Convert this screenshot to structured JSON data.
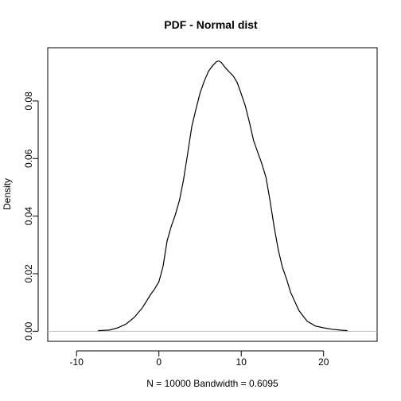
{
  "chart_data": {
    "type": "line",
    "title": "PDF - Normal dist",
    "xlabel": "N = 10000   Bandwidth = 0.6095",
    "ylabel": "Density",
    "xlim": [
      -13.5,
      26.5
    ],
    "ylim": [
      -0.0035,
      0.0985
    ],
    "x_ticks": [
      -10,
      0,
      10,
      20
    ],
    "x_tick_labels": [
      "-10",
      "0",
      "10",
      "20"
    ],
    "y_ticks": [
      0.0,
      0.02,
      0.04,
      0.06,
      0.08
    ],
    "y_tick_labels": [
      "0.00",
      "0.02",
      "0.04",
      "0.06",
      "0.08"
    ],
    "zero_line": true,
    "grid": false,
    "series": [
      {
        "x": [
          -7.4,
          -6,
          -5,
          -4,
          -3,
          -2,
          -1.5,
          -1,
          -0.5,
          0,
          0.5,
          1,
          1.5,
          2,
          2.5,
          3,
          3.5,
          4,
          4.5,
          5,
          5.5,
          6,
          6.5,
          7,
          7.3,
          7.6,
          8,
          8.5,
          9,
          9.5,
          10,
          10.5,
          11,
          11.5,
          12,
          12.5,
          13,
          13.5,
          14,
          14.5,
          15,
          15.5,
          16,
          17,
          18,
          19,
          20,
          21,
          22,
          22.9
        ],
        "y": [
          0.0002,
          0.0004,
          0.0012,
          0.0025,
          0.0048,
          0.0082,
          0.0105,
          0.0128,
          0.0148,
          0.0172,
          0.0225,
          0.0315,
          0.0365,
          0.0405,
          0.0455,
          0.0528,
          0.0618,
          0.0712,
          0.0772,
          0.0828,
          0.0868,
          0.0902,
          0.0922,
          0.0937,
          0.0939,
          0.0933,
          0.0918,
          0.0902,
          0.0888,
          0.0865,
          0.0825,
          0.0782,
          0.0725,
          0.0662,
          0.0622,
          0.0582,
          0.0535,
          0.0452,
          0.0362,
          0.0282,
          0.0222,
          0.0182,
          0.0135,
          0.0072,
          0.0035,
          0.0018,
          0.0012,
          0.0007,
          0.0004,
          0.0002
        ]
      }
    ]
  }
}
